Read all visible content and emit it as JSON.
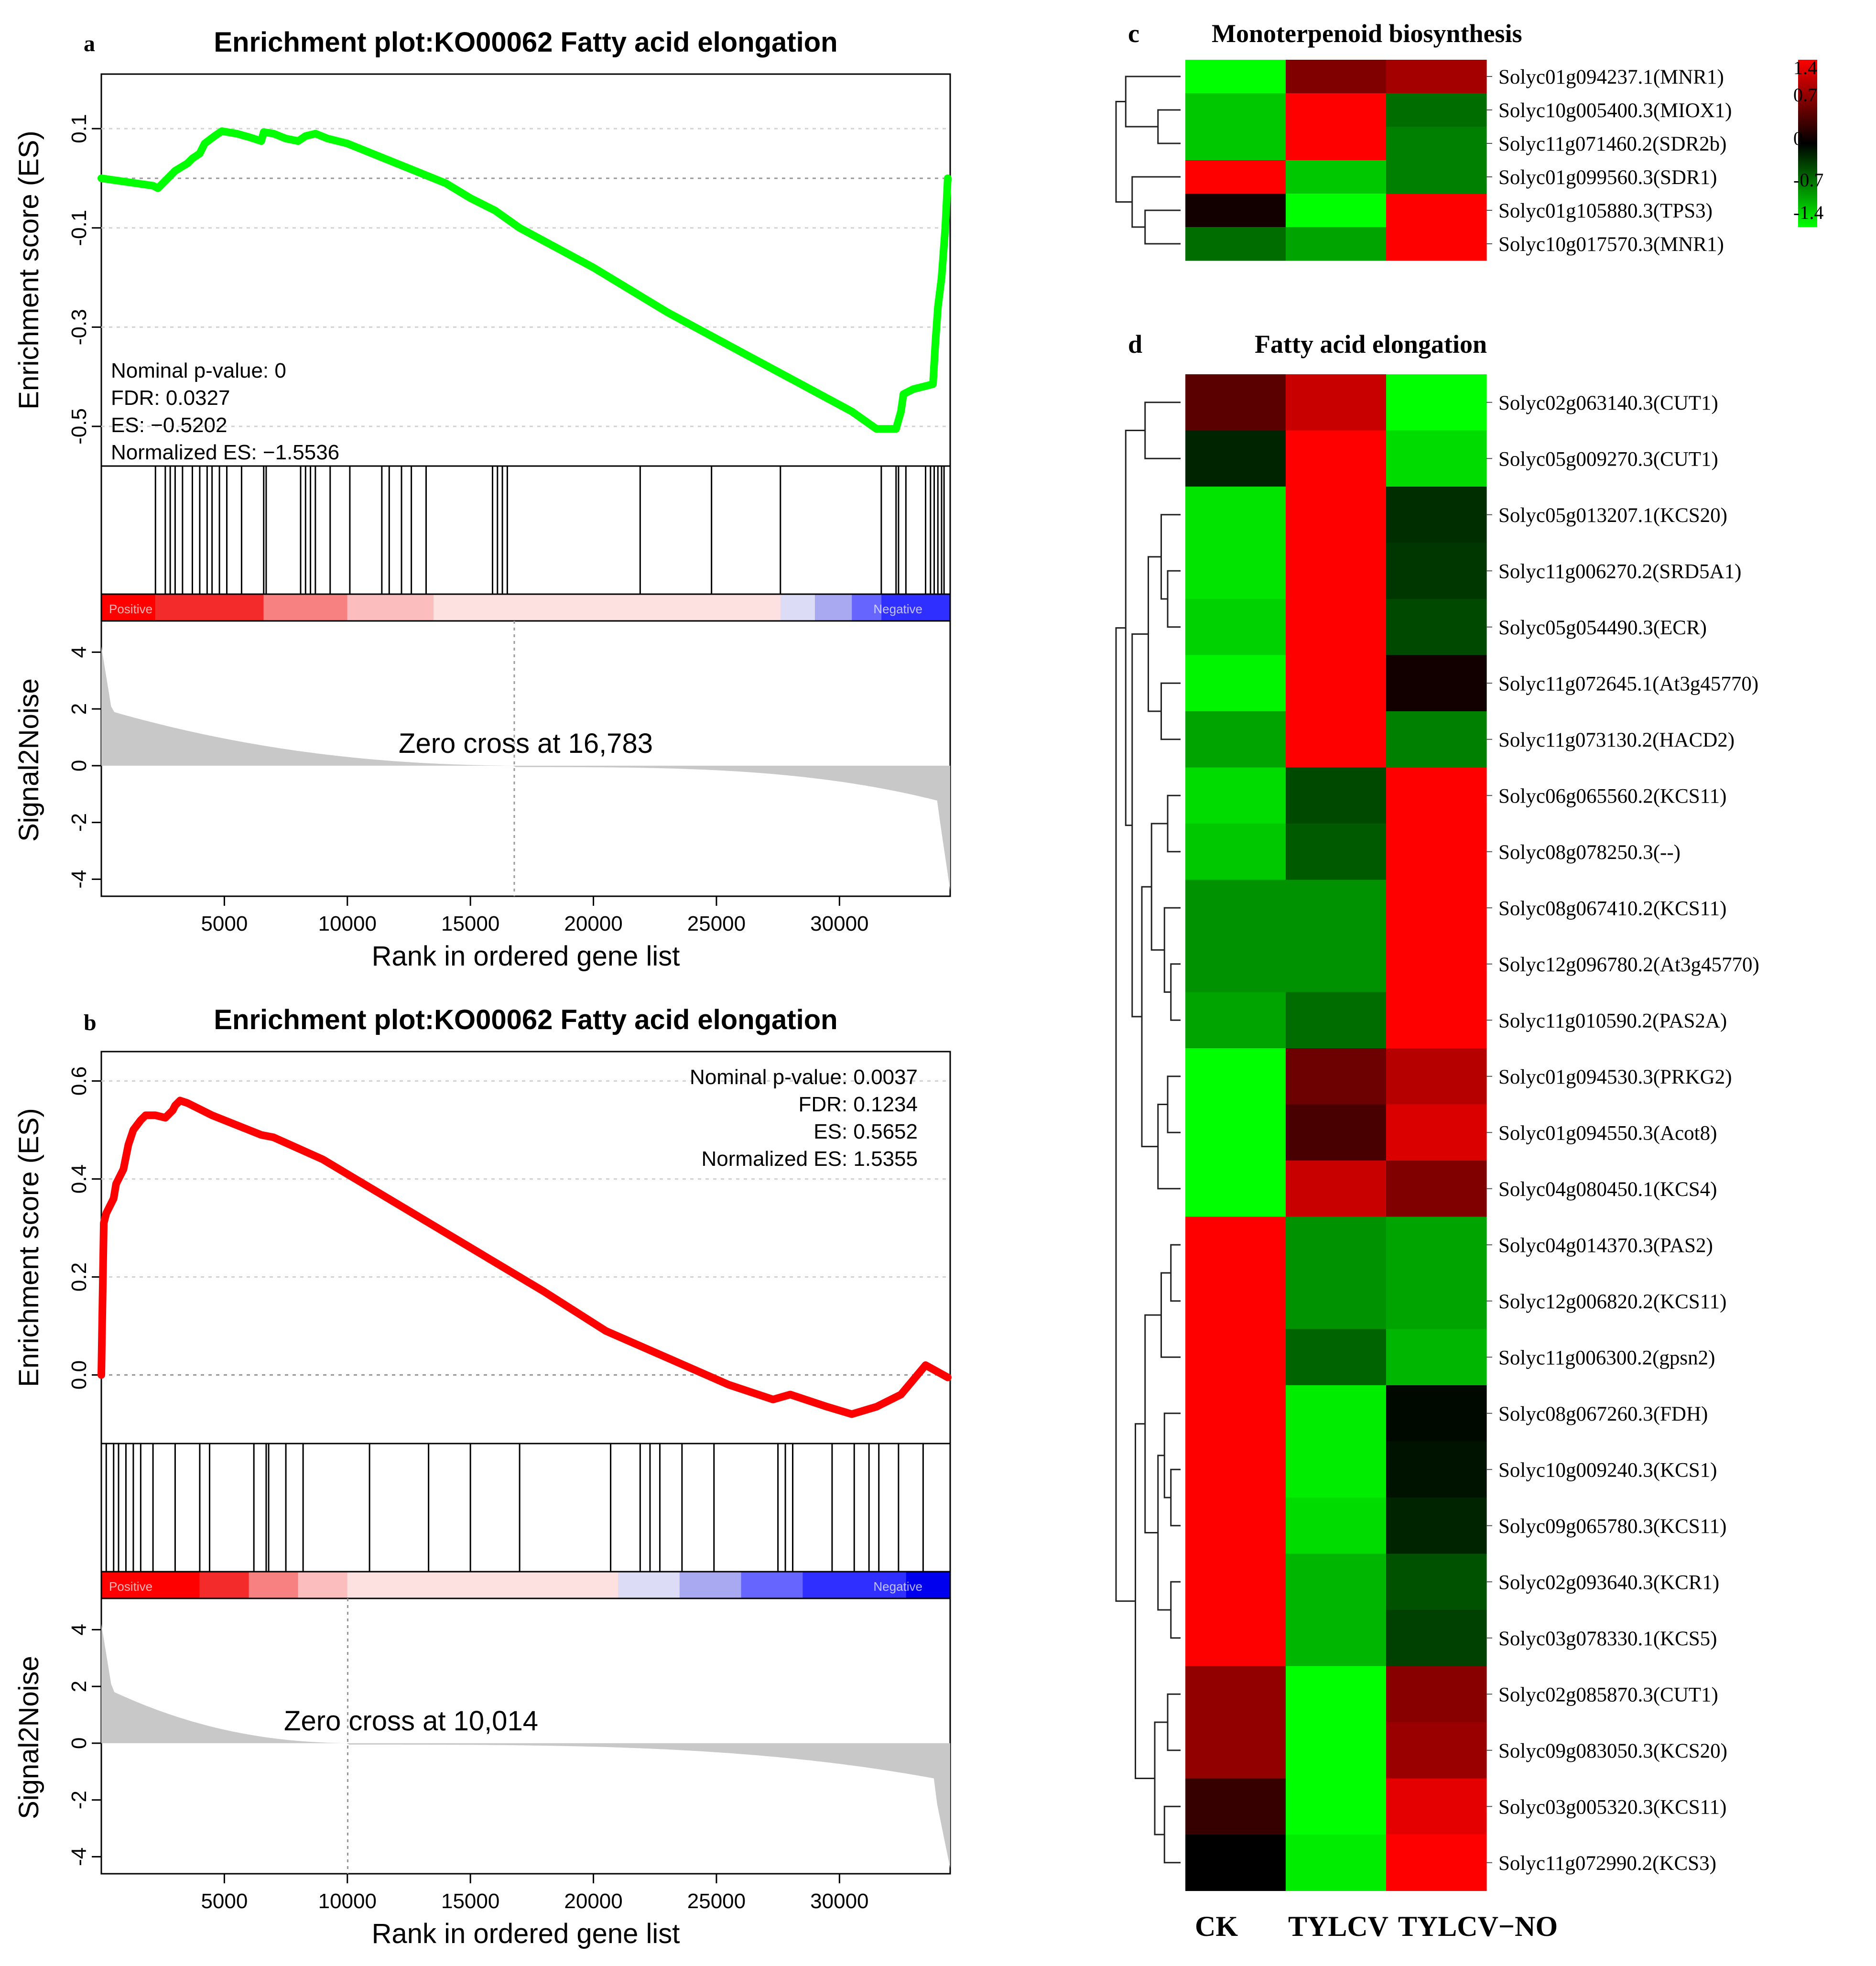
{
  "panels": [
    {
      "id": "a",
      "panel_letter": "a",
      "title": "Enrichment plot:KO00062 Fatty acid elongation",
      "es_axis_label": "Enrichment score (ES)",
      "metric_axis_label": "Signal2Noise",
      "x_axis_label": "Rank in ordered gene list",
      "stats": [
        "Nominal p-value: 0",
        "FDR: 0.0327",
        "ES: −0.5202",
        "Normalized ES: −1.5536"
      ],
      "zero_cross_text": "Zero cross at 16,783",
      "positive_label": "Positive",
      "negative_label": "Negative",
      "line_color": "#00ff00"
    },
    {
      "id": "b",
      "panel_letter": "b",
      "title": "Enrichment plot:KO00062 Fatty acid elongation",
      "es_axis_label": "Enrichment score (ES)",
      "metric_axis_label": "Signal2Noise",
      "x_axis_label": "Rank in ordered gene list",
      "stats": [
        "Nominal p-value: 0.0037",
        "FDR: 0.1234",
        "ES: 0.5652",
        "Normalized ES: 1.5355"
      ],
      "zero_cross_text": "Zero cross at 10,014",
      "positive_label": "Positive",
      "negative_label": "Negative",
      "line_color": "#ff0000"
    }
  ],
  "heatmaps": [
    {
      "id": "c",
      "panel_letter": "c",
      "title": "Monoterpenoid biosynthesis",
      "columns": [
        "CK",
        "TYLCV",
        "TYLCV−NO"
      ],
      "rows": [
        "Solyc01g094237.1(MNR1)",
        "Solyc10g005400.3(MIOX1)",
        "Solyc11g071460.2(SDR2b)",
        "Solyc01g099560.3(SDR1)",
        "Solyc01g105880.3(TPS3)",
        "Solyc10g017570.3(MNR1)"
      ]
    },
    {
      "id": "d",
      "panel_letter": "d",
      "title": "Fatty acid elongation",
      "columns": [
        "CK",
        "TYLCV",
        "TYLCV−NO"
      ],
      "rows": [
        "Solyc02g063140.3(CUT1)",
        "Solyc05g009270.3(CUT1)",
        "Solyc05g013207.1(KCS20)",
        "Solyc11g006270.2(SRD5A1)",
        "Solyc05g054490.3(ECR)",
        "Solyc11g072645.1(At3g45770)",
        "Solyc11g073130.2(HACD2)",
        "Solyc06g065560.2(KCS11)",
        "Solyc08g078250.3(--)",
        "Solyc08g067410.2(KCS11)",
        "Solyc12g096780.2(At3g45770)",
        "Solyc11g010590.2(PAS2A)",
        "Solyc01g094530.3(PRKG2)",
        "Solyc01g094550.3(Acot8)",
        "Solyc04g080450.1(KCS4)",
        "Solyc04g014370.3(PAS2)",
        "Solyc12g006820.2(KCS11)",
        "Solyc11g006300.2(gpsn2)",
        "Solyc08g067260.3(FDH)",
        "Solyc10g009240.3(KCS1)",
        "Solyc09g065780.3(KCS11)",
        "Solyc02g093640.3(KCR1)",
        "Solyc03g078330.1(KCS5)",
        "Solyc02g085870.3(CUT1)",
        "Solyc09g083050.3(KCS20)",
        "Solyc03g005320.3(KCS11)",
        "Solyc11g072990.2(KCS3)"
      ]
    }
  ],
  "column_labels": [
    "CK",
    "TYLCV",
    "TYLCV−NO"
  ],
  "color_key": {
    "ticks": [
      "1.4",
      "0.7",
      "0",
      "-0.7",
      "-1.4"
    ],
    "high_color": "#ff0000",
    "mid_color": "#000000",
    "low_color": "#00ff00"
  },
  "chart_data": [
    {
      "type": "line",
      "panel": "a",
      "title": "Enrichment plot:KO00062 Fatty acid elongation",
      "xlabel": "Rank in ordered gene list",
      "ylabel": "Enrichment score (ES)",
      "xlim": [
        0,
        34500
      ],
      "ylim": [
        -0.58,
        0.21
      ],
      "x_ticks": [
        5000,
        10000,
        15000,
        20000,
        25000,
        30000
      ],
      "y_ticks": [
        0.1,
        -0.1,
        -0.3,
        -0.5
      ],
      "x_tick_labels": [
        "5000",
        "10000",
        "15000",
        "20000",
        "25000",
        "30000"
      ],
      "y_tick_labels": [
        "0.1",
        "-0.1",
        "-0.3",
        "-0.5"
      ],
      "series": [
        {
          "color": "#00ff00",
          "x": [
            0,
            2100,
            2300,
            2500,
            3000,
            3500,
            3700,
            4000,
            4200,
            4600,
            4900,
            5500,
            6000,
            6500,
            6600,
            7000,
            7500,
            8000,
            8300,
            8700,
            9200,
            10000,
            12000,
            14000,
            15000,
            16000,
            17000,
            20000,
            23000,
            26000,
            29000,
            30500,
            31500,
            32300,
            32500,
            32600,
            33000,
            33800,
            33900,
            34000,
            34150,
            34300,
            34400
          ],
          "y": [
            0.0,
            -0.015,
            -0.02,
            -0.01,
            0.015,
            0.03,
            0.04,
            0.05,
            0.07,
            0.085,
            0.095,
            0.09,
            0.083,
            0.075,
            0.093,
            0.09,
            0.08,
            0.075,
            0.085,
            0.09,
            0.08,
            0.07,
            0.03,
            -0.01,
            -0.04,
            -0.065,
            -0.1,
            -0.18,
            -0.27,
            -0.35,
            -0.43,
            -0.47,
            -0.505,
            -0.505,
            -0.47,
            -0.435,
            -0.425,
            -0.415,
            -0.33,
            -0.26,
            -0.2,
            -0.1,
            0.0
          ]
        }
      ],
      "hits": [
        2200,
        2600,
        2800,
        3000,
        3300,
        3700,
        4000,
        4300,
        4500,
        4800,
        5100,
        5700,
        6600,
        6700,
        8100,
        8300,
        8500,
        8700,
        9300,
        10100,
        11400,
        11700,
        12200,
        12600,
        13200,
        15900,
        16100,
        16300,
        16500,
        21900,
        24800,
        27600,
        31700,
        32300,
        32400,
        32700,
        33500,
        33700,
        33850,
        34000,
        34150,
        34250
      ],
      "metric_xlabel": "Rank in ordered gene list",
      "metric_ylabel": "Signal2Noise",
      "metric_ylim": [
        -4.6,
        5.1
      ],
      "metric_ticks": [
        4,
        2,
        0,
        -2,
        -4
      ],
      "metric_tick_labels": [
        "4",
        "2",
        "0",
        "-2",
        "-4"
      ],
      "metric_total": 34500,
      "zero_cross": 16783,
      "ranked_bar": [
        "#ff0000",
        "#f42b2b",
        "#f78080",
        "#fbbdbd",
        "#fde0e0",
        "#dcdcf6",
        "#a9a9f2",
        "#6666ff",
        "#2f2fff"
      ],
      "ranked_bar_breaks": [
        0,
        2200,
        6600,
        10000,
        13500,
        27600,
        29000,
        30500,
        31700,
        34500
      ],
      "annotations": [
        "Nominal p-value: 0",
        "FDR: 0.0327",
        "ES: −0.5202",
        "Normalized ES: −1.5536",
        "Zero cross at 16,783"
      ]
    },
    {
      "type": "line",
      "panel": "b",
      "title": "Enrichment plot:KO00062 Fatty acid elongation",
      "xlabel": "Rank in ordered gene list",
      "ylabel": "Enrichment score (ES)",
      "xlim": [
        0,
        34500
      ],
      "ylim": [
        -0.14,
        0.66
      ],
      "x_ticks": [
        5000,
        10000,
        15000,
        20000,
        25000,
        30000
      ],
      "y_ticks": [
        0.6,
        0.4,
        0.2,
        0.0
      ],
      "x_tick_labels": [
        "5000",
        "10000",
        "15000",
        "20000",
        "25000",
        "30000"
      ],
      "y_tick_labels": [
        "0.6",
        "0.4",
        "0.2",
        "0.0"
      ],
      "series": [
        {
          "color": "#ff0000",
          "x": [
            0,
            100,
            200,
            500,
            600,
            900,
            1100,
            1300,
            1600,
            1800,
            2200,
            2600,
            2900,
            3000,
            3200,
            3500,
            4500,
            5500,
            6500,
            7000,
            9000,
            12000,
            15000,
            18000,
            20500,
            23000,
            25500,
            27300,
            28000,
            29500,
            30500,
            31500,
            32500,
            33500,
            34400
          ],
          "y": [
            0.0,
            0.31,
            0.33,
            0.36,
            0.39,
            0.42,
            0.47,
            0.5,
            0.52,
            0.53,
            0.53,
            0.525,
            0.54,
            0.55,
            0.56,
            0.555,
            0.53,
            0.51,
            0.49,
            0.485,
            0.44,
            0.35,
            0.26,
            0.17,
            0.09,
            0.035,
            -0.02,
            -0.05,
            -0.04,
            -0.065,
            -0.08,
            -0.065,
            -0.04,
            0.02,
            -0.005
          ]
        }
      ],
      "hits": [
        200,
        500,
        700,
        1000,
        1300,
        1600,
        2100,
        3000,
        4000,
        4400,
        6200,
        6700,
        6800,
        7500,
        8200,
        10900,
        13300,
        15000,
        17000,
        20700,
        21900,
        22300,
        22700,
        23600,
        24900,
        27500,
        27800,
        28100,
        29700,
        30600,
        31200,
        31600,
        32400,
        33400
      ],
      "metric_xlabel": "Rank in ordered gene list",
      "metric_ylabel": "Signal2Noise",
      "metric_ylim": [
        -4.6,
        5.1
      ],
      "metric_ticks": [
        4,
        2,
        0,
        -2,
        -4
      ],
      "metric_tick_labels": [
        "4",
        "2",
        "0",
        "-2",
        "-4"
      ],
      "metric_total": 34500,
      "zero_cross": 10014,
      "ranked_bar": [
        "#ff0000",
        "#f42b2b",
        "#f78080",
        "#fbbdbd",
        "#fde0e0",
        "#dcdcf6",
        "#a9a9f2",
        "#6666ff",
        "#2f2fff",
        "#0000ee"
      ],
      "ranked_bar_breaks": [
        0,
        4000,
        6000,
        8000,
        10000,
        21000,
        23500,
        26000,
        28500,
        32700,
        34500
      ],
      "annotations": [
        "Nominal p-value: 0.0037",
        "FDR: 0.1234",
        "ES: 0.5652",
        "Normalized ES: 1.5355",
        "Zero cross at 10,014"
      ]
    },
    {
      "type": "heatmap",
      "panel": "c",
      "title": "Monoterpenoid biosynthesis",
      "columns": [
        "CK",
        "TYLCV",
        "TYLCV−NO"
      ],
      "rows": [
        "Solyc01g094237.1(MNR1)",
        "Solyc10g005400.3(MIOX1)",
        "Solyc11g071460.2(SDR2b)",
        "Solyc01g099560.3(SDR1)",
        "Solyc01g105880.3(TPS3)",
        "Solyc10g017570.3(MNR1)"
      ],
      "values": [
        [
          -1.4,
          0.7,
          0.9
        ],
        [
          -1.1,
          1.4,
          -0.6
        ],
        [
          -1.1,
          1.4,
          -0.7
        ],
        [
          1.4,
          -1.1,
          -0.7
        ],
        [
          0.1,
          -1.4,
          1.4
        ],
        [
          -0.6,
          -0.9,
          1.4
        ]
      ],
      "scale": [
        -1.4,
        1.4
      ],
      "dendrogram": {
        "leaves": [
          0,
          1,
          2,
          3,
          4,
          5
        ],
        "merges": [
          {
            "a": 1,
            "b": 2,
            "h": 0.35
          },
          {
            "a": 4,
            "b": 5,
            "h": 0.55
          },
          {
            "a": 3,
            "b": 7,
            "h": 0.75
          },
          {
            "a": 0,
            "b": 6,
            "h": 0.85
          },
          {
            "a": 9,
            "b": 8,
            "h": 1.0
          }
        ]
      }
    },
    {
      "type": "heatmap",
      "panel": "d",
      "title": "Fatty acid elongation",
      "columns": [
        "CK",
        "TYLCV",
        "TYLCV−NO"
      ],
      "rows": [
        "Solyc02g063140.3(CUT1)",
        "Solyc05g009270.3(CUT1)",
        "Solyc05g013207.1(KCS20)",
        "Solyc11g006270.2(SRD5A1)",
        "Solyc05g054490.3(ECR)",
        "Solyc11g072645.1(At3g45770)",
        "Solyc11g073130.2(HACD2)",
        "Solyc06g065560.2(KCS11)",
        "Solyc08g078250.3(--)",
        "Solyc08g067410.2(KCS11)",
        "Solyc12g096780.2(At3g45770)",
        "Solyc11g010590.2(PAS2A)",
        "Solyc01g094530.3(PRKG2)",
        "Solyc01g094550.3(Acot8)",
        "Solyc04g080450.1(KCS4)",
        "Solyc04g014370.3(PAS2)",
        "Solyc12g006820.2(KCS11)",
        "Solyc11g006300.2(gpsn2)",
        "Solyc08g067260.3(FDH)",
        "Solyc10g009240.3(KCS1)",
        "Solyc09g065780.3(KCS11)",
        "Solyc02g093640.3(KCR1)",
        "Solyc03g078330.1(KCS5)",
        "Solyc02g085870.3(CUT1)",
        "Solyc09g083050.3(KCS20)",
        "Solyc03g005320.3(KCS11)",
        "Solyc11g072990.2(KCS3)"
      ],
      "values": [
        [
          0.5,
          1.1,
          -1.4
        ],
        [
          -0.2,
          1.4,
          -1.2
        ],
        [
          -1.25,
          1.4,
          -0.25
        ],
        [
          -1.25,
          1.4,
          -0.3
        ],
        [
          -1.15,
          1.4,
          -0.4
        ],
        [
          -1.35,
          1.4,
          0.1
        ],
        [
          -0.9,
          1.4,
          -0.7
        ],
        [
          -1.2,
          -0.4,
          1.4
        ],
        [
          -1.1,
          -0.5,
          1.4
        ],
        [
          -0.8,
          -0.8,
          1.4
        ],
        [
          -0.8,
          -0.8,
          1.4
        ],
        [
          -0.9,
          -0.6,
          1.4
        ],
        [
          -1.4,
          0.6,
          1.0
        ],
        [
          -1.4,
          0.4,
          1.2
        ],
        [
          -1.4,
          1.1,
          0.7
        ],
        [
          1.4,
          -0.8,
          -0.9
        ],
        [
          1.4,
          -0.8,
          -0.9
        ],
        [
          1.4,
          -0.55,
          -1.0
        ],
        [
          1.4,
          -1.3,
          -0.05
        ],
        [
          1.4,
          -1.3,
          -0.1
        ],
        [
          1.4,
          -1.2,
          -0.2
        ],
        [
          1.4,
          -1.0,
          -0.45
        ],
        [
          1.4,
          -1.0,
          -0.35
        ],
        [
          0.8,
          -1.4,
          0.75
        ],
        [
          0.8,
          -1.4,
          0.85
        ],
        [
          0.3,
          -1.4,
          1.25
        ],
        [
          0.0,
          -1.3,
          1.4
        ]
      ],
      "scale": [
        -1.4,
        1.4
      ],
      "dendrogram": {
        "leaves": [
          0,
          1,
          2,
          3,
          4,
          5,
          6,
          7,
          8,
          9,
          10,
          11,
          12,
          13,
          14,
          15,
          16,
          17,
          18,
          19,
          20,
          21,
          22,
          23,
          24,
          25,
          26
        ],
        "merges": [
          {
            "a": 0,
            "b": 1,
            "h": 0.55
          },
          {
            "a": 3,
            "b": 4,
            "h": 0.2
          },
          {
            "a": 2,
            "b": 28,
            "h": 0.3
          },
          {
            "a": 5,
            "b": 6,
            "h": 0.3
          },
          {
            "a": 29,
            "b": 30,
            "h": 0.5
          },
          {
            "a": 7,
            "b": 8,
            "h": 0.2
          },
          {
            "a": 10,
            "b": 11,
            "h": 0.15
          },
          {
            "a": 9,
            "b": 33,
            "h": 0.25
          },
          {
            "a": 32,
            "b": 34,
            "h": 0.45
          },
          {
            "a": 12,
            "b": 13,
            "h": 0.2
          },
          {
            "a": 36,
            "b": 14,
            "h": 0.35
          },
          {
            "a": 35,
            "b": 37,
            "h": 0.6
          },
          {
            "a": 31,
            "b": 38,
            "h": 0.75
          },
          {
            "a": 27,
            "b": 39,
            "h": 0.85
          },
          {
            "a": 15,
            "b": 16,
            "h": 0.15
          },
          {
            "a": 41,
            "b": 17,
            "h": 0.3
          },
          {
            "a": 19,
            "b": 20,
            "h": 0.15
          },
          {
            "a": 18,
            "b": 43,
            "h": 0.25
          },
          {
            "a": 21,
            "b": 22,
            "h": 0.15
          },
          {
            "a": 44,
            "b": 45,
            "h": 0.35
          },
          {
            "a": 42,
            "b": 46,
            "h": 0.55
          },
          {
            "a": 23,
            "b": 24,
            "h": 0.2
          },
          {
            "a": 25,
            "b": 26,
            "h": 0.25
          },
          {
            "a": 48,
            "b": 49,
            "h": 0.4
          },
          {
            "a": 47,
            "b": 50,
            "h": 0.7
          },
          {
            "a": 40,
            "b": 51,
            "h": 1.0
          }
        ]
      }
    }
  ]
}
